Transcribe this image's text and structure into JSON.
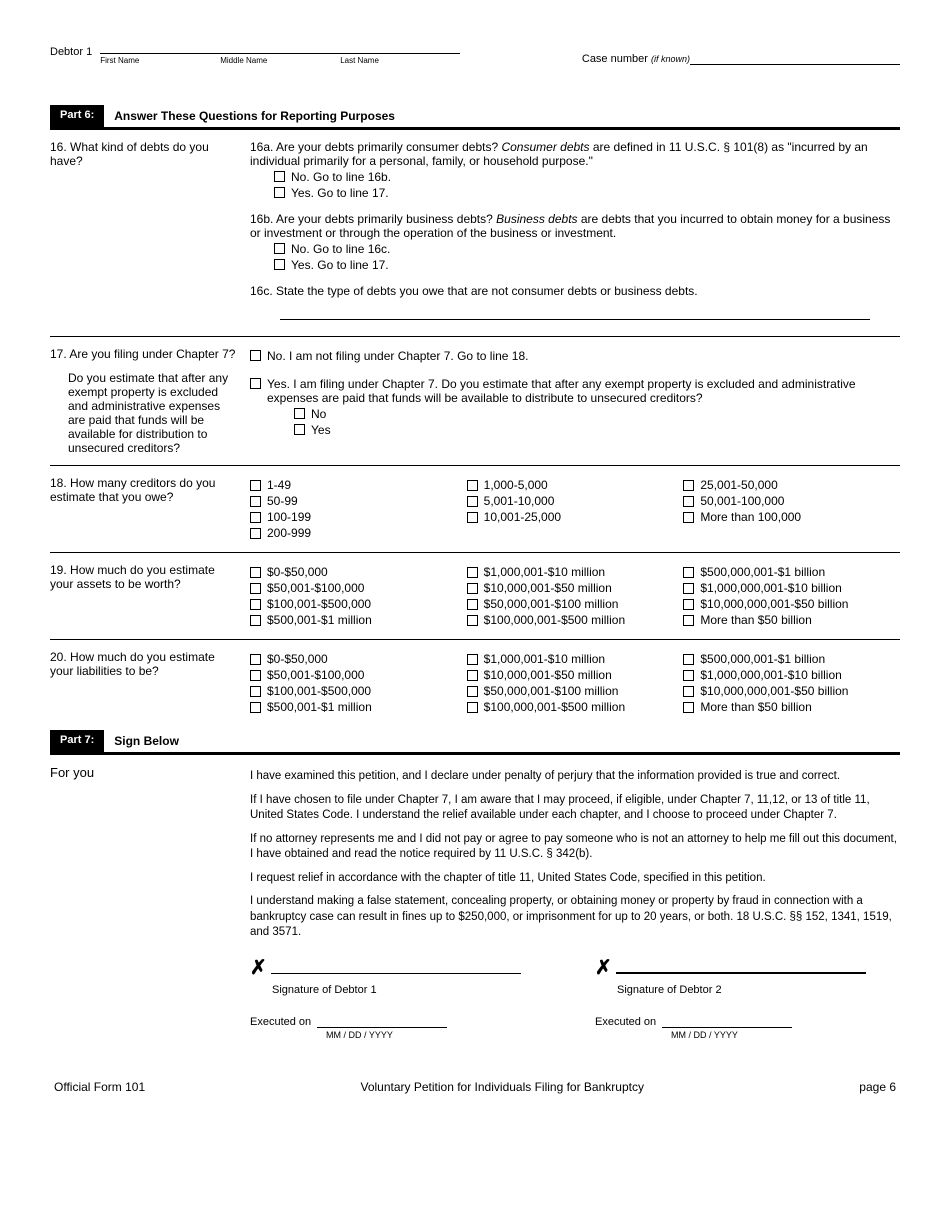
{
  "header": {
    "debtor_label": "Debtor 1",
    "first_name_label": "First Name",
    "middle_name_label": "Middle Name",
    "last_name_label": "Last Name",
    "case_label": "Case number",
    "if_known": "(if known)"
  },
  "part6": {
    "chip": "Part 6:",
    "title": "Answer These Questions for Reporting Purposes"
  },
  "q16": {
    "num": "16.",
    "q": "What kind of debts do you have?",
    "a_num": "16a.",
    "a_lead": "Are your debts primarily consumer debts?",
    "a_body_italic": "Consumer debts",
    "a_body": " are defined in 11 U.S.C. § 101(8) as \"incurred by an individual primarily for a personal, family, or household purpose.\"",
    "a_no": "No. Go to line 16b.",
    "a_yes": "Yes. Go to line 17.",
    "b_num": "16b.",
    "b_lead": "Are your debts primarily business debts?",
    "b_body_italic": "Business debts",
    "b_body": " are debts that you incurred to obtain money for a business or investment or through the operation of the business or investment.",
    "b_no": "No. Go to line 16c.",
    "b_yes": "Yes. Go to line 17.",
    "c_num": "16c.",
    "c_body": "State the type of debts you owe that are not consumer debts or business debts."
  },
  "q17": {
    "num": "17.",
    "q1": "Are you filing under Chapter 7?",
    "q2": "Do you estimate that after any exempt property is excluded and administrative expenses are paid that funds will be available for distribution to unsecured creditors?",
    "no": "No. I am not filing under Chapter 7. Go to line 18.",
    "yes": "Yes. I am filing under Chapter 7. Do you estimate that after any exempt property is excluded and administrative expenses are paid that funds will be available to distribute to unsecured creditors?",
    "sub_no": "No",
    "sub_yes": "Yes"
  },
  "q18": {
    "num": "18.",
    "q": "How many creditors do you estimate that you owe?",
    "col1": [
      "1-49",
      "50-99",
      "100-199",
      "200-999"
    ],
    "col2": [
      "1,000-5,000",
      "5,001-10,000",
      "10,001-25,000"
    ],
    "col3": [
      "25,001-50,000",
      "50,001-100,000",
      "More than 100,000"
    ]
  },
  "q19": {
    "num": "19.",
    "q": "How much do you estimate your assets to be worth?",
    "col1": [
      "$0-$50,000",
      "$50,001-$100,000",
      "$100,001-$500,000",
      "$500,001-$1 million"
    ],
    "col2": [
      "$1,000,001-$10 million",
      "$10,000,001-$50 million",
      "$50,000,001-$100 million",
      "$100,000,001-$500 million"
    ],
    "col3": [
      "$500,000,001-$1 billion",
      "$1,000,000,001-$10 billion",
      "$10,000,000,001-$50 billion",
      "More than $50 billion"
    ]
  },
  "q20": {
    "num": "20.",
    "q": "How much do you estimate your liabilities to be?",
    "col1": [
      "$0-$50,000",
      "$50,001-$100,000",
      "$100,001-$500,000",
      "$500,001-$1 million"
    ],
    "col2": [
      "$1,000,001-$10 million",
      "$10,000,001-$50 million",
      "$50,000,001-$100 million",
      "$100,000,001-$500 million"
    ],
    "col3": [
      "$500,000,001-$1 billion",
      "$1,000,000,001-$10 billion",
      "$10,000,000,001-$50 billion",
      "More than $50 billion"
    ]
  },
  "part7": {
    "chip": "Part 7:",
    "title": "Sign Below"
  },
  "sign": {
    "for_you": "For you",
    "p1": "I have examined this petition, and I declare under penalty of perjury that the information provided is true and correct.",
    "p2": "If I have chosen to file under Chapter 7, I am aware that I may proceed, if eligible, under Chapter 7, 11,12, or 13 of title 11, United States Code. I understand the relief available under each chapter, and I choose to proceed under Chapter 7.",
    "p3": "If no attorney represents me and I did not pay or agree to pay someone who is not an attorney to help me fill out this document, I have obtained and read the notice required by 11 U.S.C. § 342(b).",
    "p4": "I request relief in accordance with the chapter of title 11, United States Code, specified in this petition.",
    "p5": "I understand making a false statement, concealing property, or obtaining money or property by fraud in connection with a bankruptcy case can result in fines up to $250,000, or imprisonment for up to 20 years, or both. 18 U.S.C. §§ 152, 1341, 1519, and 3571.",
    "sig1": "Signature of Debtor 1",
    "sig2": "Signature of Debtor 2",
    "exec": "Executed on",
    "date_fmt": "MM   /  DD   / YYYY"
  },
  "footer": {
    "form": "Official Form 101",
    "title": "Voluntary Petition for Individuals Filing for Bankruptcy",
    "page": "page 6"
  }
}
